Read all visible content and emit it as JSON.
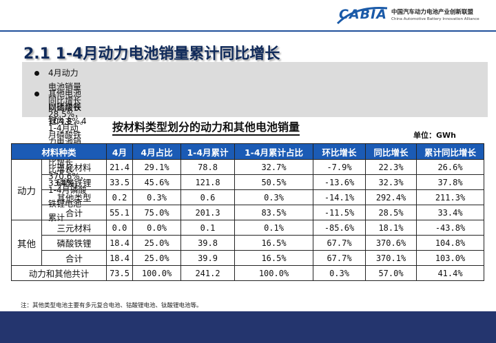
{
  "header": {
    "logo_mark": "CABIA",
    "org_cn": "中国汽车动力电池产业创新联盟",
    "org_en": "China Automotive Battery Innovation Alliance"
  },
  "title": "2.1 1-4月动力电池销量累计同比增长",
  "bullets": [
    {
      "line1": "4月动力电池销量同比增长28.5%，1-4月动力电池销量累计同比增长33.4%。",
      "line2": ""
    },
    {
      "line1": "其他电池以磷酸铁锂为主，4月磷酸铁锂电池同比增长370.6%，1-4月磷酸铁锂电池累计",
      "line2": "同比增长104.8%。"
    }
  ],
  "table_title": "按材料类型划分的动力和其他电池销量",
  "unit": "单位：GWh",
  "table": {
    "headers": [
      "材料种类",
      "4月",
      "4月占比",
      "1-4月累计",
      "1-4月累计占比",
      "环比增长",
      "同比增长",
      "累计同比增长"
    ],
    "groups": [
      {
        "name": "动力",
        "rows": [
          [
            "三元材料",
            "21.4",
            "29.1%",
            "78.8",
            "32.7%",
            "-7.9%",
            "22.3%",
            "26.6%"
          ],
          [
            "磷酸铁锂",
            "33.5",
            "45.6%",
            "121.8",
            "50.5%",
            "-13.6%",
            "32.3%",
            "37.8%"
          ],
          [
            "其他类型",
            "0.2",
            "0.3%",
            "0.6",
            "0.3%",
            "-14.1%",
            "292.4%",
            "211.3%"
          ],
          [
            "合计",
            "55.1",
            "75.0%",
            "201.3",
            "83.5%",
            "-11.5%",
            "28.5%",
            "33.4%"
          ]
        ]
      },
      {
        "name": "其他",
        "rows": [
          [
            "三元材料",
            "0.0",
            "0.0%",
            "0.1",
            "0.1%",
            "-85.6%",
            "18.1%",
            "-43.8%"
          ],
          [
            "磷酸铁锂",
            "18.4",
            "25.0%",
            "39.8",
            "16.5%",
            "67.7%",
            "370.6%",
            "104.8%"
          ],
          [
            "合计",
            "18.4",
            "25.0%",
            "39.9",
            "16.5%",
            "67.7%",
            "370.1%",
            "103.0%"
          ]
        ]
      }
    ],
    "total": [
      "动力和其他共计",
      "73.5",
      "100.0%",
      "241.2",
      "100.0%",
      "0.3%",
      "57.0%",
      "41.4%"
    ]
  },
  "footnote": "注：其他类型电池主要有多元复合电池、钴酸锂电池、钛酸锂电池等。",
  "colors": {
    "header_blue": "#1b5bb5",
    "footer_band": "#24356e",
    "title_navy": "#102a5a"
  }
}
